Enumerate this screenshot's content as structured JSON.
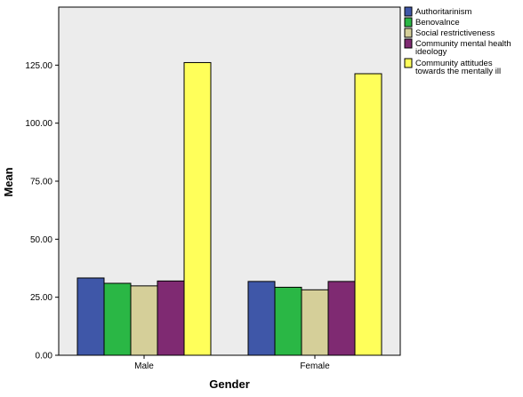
{
  "chart_data": {
    "type": "bar",
    "xlabel": "Gender",
    "ylabel": "Mean",
    "categories": [
      "Male",
      "Female"
    ],
    "ylim": [
      0,
      150
    ],
    "yticks": [
      "0.00",
      "25.00",
      "50.00",
      "75.00",
      "100.00",
      "125.00"
    ],
    "grid": false,
    "legend_position": "right",
    "series": [
      {
        "name": "Authoritarinism",
        "color": "#3f57a8",
        "values": [
          33.3,
          31.8
        ]
      },
      {
        "name": "Benovalnce",
        "color": "#2ab745",
        "values": [
          31.0,
          29.3
        ]
      },
      {
        "name": "Social restrictiveness",
        "color": "#d5cf99",
        "values": [
          29.9,
          28.2
        ]
      },
      {
        "name": "Community mental health ideology",
        "color": "#7f2a72",
        "values": [
          32.0,
          31.8
        ]
      },
      {
        "name": "Community attitudes towards the mentally ill",
        "color": "#ffff5a",
        "values": [
          126.1,
          121.3
        ]
      }
    ]
  }
}
